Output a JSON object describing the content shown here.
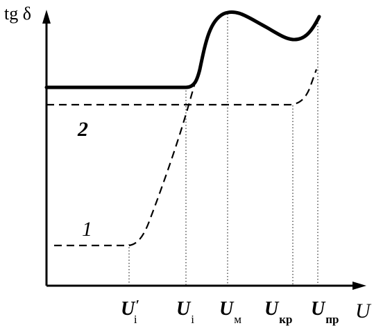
{
  "axes": {
    "y_label": "tg δ",
    "x_label": "U"
  },
  "ticks": [
    {
      "id": "ui-prime",
      "main": "U",
      "sub": "i",
      "prime": "′"
    },
    {
      "id": "ui",
      "main": "U",
      "sub": "i",
      "prime": ""
    },
    {
      "id": "um",
      "main": "U",
      "sub": "м",
      "prime": ""
    },
    {
      "id": "ukr",
      "main": "U",
      "sub": "кр",
      "prime": ""
    },
    {
      "id": "upr",
      "main": "U",
      "sub": "пр",
      "prime": ""
    }
  ],
  "curve_labels": {
    "curve_1": "1",
    "curve_2": "2"
  },
  "colors": {
    "ink": "#000000",
    "background": "#ffffff"
  }
}
